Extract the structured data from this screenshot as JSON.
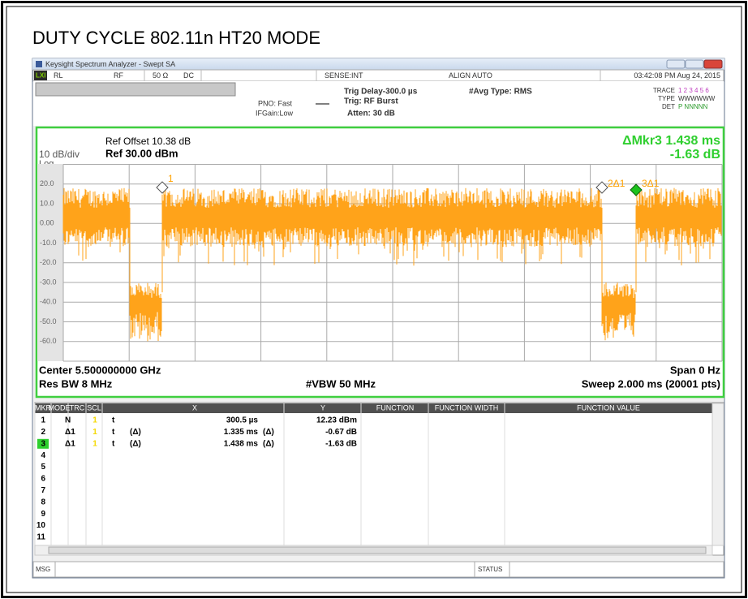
{
  "title": "DUTY CYCLE 802.11n HT20 MODE",
  "window": {
    "title": "Keysight Spectrum Analyzer - Swept SA"
  },
  "status_bar": {
    "logo": "LXI",
    "rl": "RL",
    "rf": "RF",
    "impedance": "50 Ω",
    "coupling": "DC",
    "sense": "SENSE:INT",
    "align": "ALIGN AUTO",
    "datetime": "03:42:08 PM Aug 24, 2015"
  },
  "settings": {
    "pno": "PNO: Fast",
    "ifgain": "IFGain:Low",
    "trig_delay": "Trig Delay-300.0 µs",
    "trig": "Trig: RF Burst",
    "atten": "Atten: 30 dB",
    "avg_type": "#Avg Type: RMS",
    "trace_label": "TRACE",
    "trace_values": "1 2 3 4 5 6",
    "type_label": "TYPE",
    "type_values": "WWWWWW",
    "det_label": "DET",
    "det_values": "P NNNNN"
  },
  "graph": {
    "ref_offset": "Ref Offset 10.38 dB",
    "ref_level": "Ref 30.00 dBm",
    "scale": "10 dB/div",
    "scale_type": "Log",
    "delta_marker": "ΔMkr3 1.438 ms",
    "delta_value": "-1.63 dB",
    "y_labels": [
      "20.0",
      "10.0",
      "0.00",
      "-10.0",
      "-20.0",
      "-30.0",
      "-40.0",
      "-50.0",
      "-60.0"
    ],
    "marker_labels": [
      "1",
      "2Δ1",
      "3Δ1"
    ],
    "center": "Center 5.500000000 GHz",
    "res_bw": "Res BW 8 MHz",
    "vbw": "#VBW 50 MHz",
    "span": "Span 0 Hz",
    "sweep": "Sweep  2.000 ms (20001 pts)"
  },
  "marker_table": {
    "headers": [
      "MKR",
      "MODE",
      "TRC",
      "SCL",
      "X",
      "Y",
      "FUNCTION",
      "FUNCTION WIDTH",
      "FUNCTION VALUE"
    ],
    "rows": [
      {
        "mkr": "1",
        "mode": "N",
        "trc": "1",
        "scl": "t",
        "x": "300.5 µs",
        "y": "12.23 dBm"
      },
      {
        "mkr": "2",
        "mode": "Δ1",
        "trc": "1",
        "scl": "t",
        "x_mode": "(Δ)",
        "x": "1.335 ms",
        "y_mode": "(Δ)",
        "y": "-0.67 dB"
      },
      {
        "mkr": "3",
        "mode": "Δ1",
        "trc": "1",
        "scl": "t",
        "x_mode": "(Δ)",
        "x": "1.438 ms",
        "y_mode": "(Δ)",
        "y": "-1.63 dB"
      },
      {
        "mkr": "4"
      },
      {
        "mkr": "5"
      },
      {
        "mkr": "6"
      },
      {
        "mkr": "7"
      },
      {
        "mkr": "8"
      },
      {
        "mkr": "9"
      },
      {
        "mkr": "10"
      },
      {
        "mkr": "11"
      }
    ]
  },
  "bottom_bar": {
    "msg": "MSG",
    "status": "STATUS"
  }
}
